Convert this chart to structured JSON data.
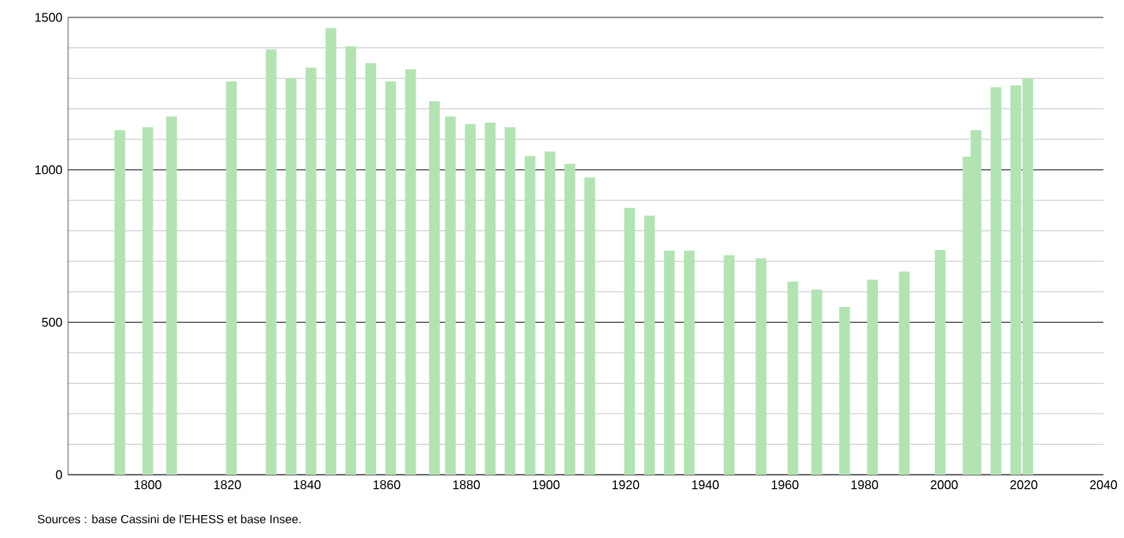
{
  "chart_data": {
    "type": "bar",
    "x": [
      1793,
      1800,
      1806,
      1821,
      1831,
      1836,
      1841,
      1846,
      1851,
      1856,
      1861,
      1866,
      1872,
      1876,
      1881,
      1886,
      1891,
      1896,
      1901,
      1906,
      1911,
      1921,
      1926,
      1931,
      1936,
      1946,
      1954,
      1962,
      1968,
      1975,
      1982,
      1990,
      1999,
      2006,
      2008,
      2013,
      2018,
      2021
    ],
    "values": [
      1130,
      1140,
      1175,
      1290,
      1395,
      1300,
      1335,
      1465,
      1405,
      1350,
      1290,
      1330,
      1225,
      1175,
      1150,
      1155,
      1140,
      1045,
      1060,
      1020,
      975,
      875,
      850,
      735,
      735,
      720,
      710,
      633,
      607,
      550,
      640,
      666,
      737,
      1043,
      1130,
      1271,
      1277,
      1300
    ],
    "color": "#b3e3b3",
    "xlim": [
      1780,
      2040
    ],
    "ylim": [
      0,
      1500
    ],
    "xticks": [
      1800,
      1820,
      1840,
      1860,
      1880,
      1900,
      1920,
      1940,
      1960,
      1980,
      2000,
      2020,
      2040
    ],
    "yticks": [
      0,
      500,
      1000,
      1500
    ],
    "grid": "y",
    "annotations": [
      "Sources : base Cassini de l'EHESS et base Insee."
    ]
  }
}
